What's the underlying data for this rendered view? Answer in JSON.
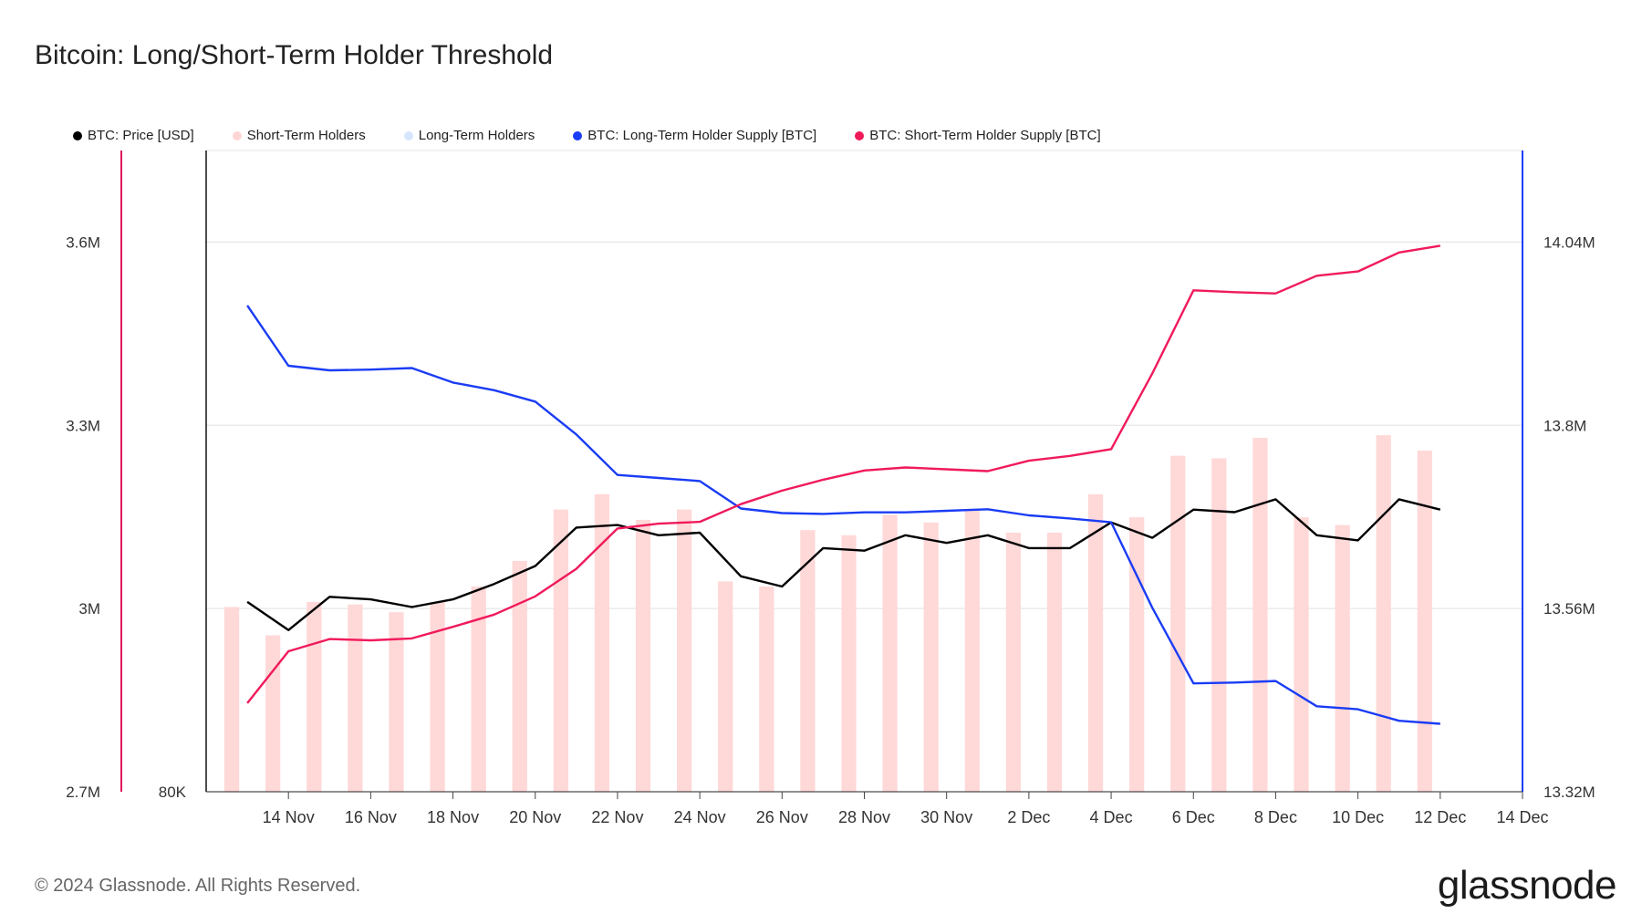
{
  "title": "Bitcoin: Long/Short-Term Holder Threshold",
  "footer": "© 2024 Glassnode. All Rights Reserved.",
  "logo": "glassnode",
  "legend": [
    {
      "label": "BTC: Price [USD]",
      "color": "#000000"
    },
    {
      "label": "Short-Term Holders",
      "color": "#ffd6d6"
    },
    {
      "label": "Long-Term Holders",
      "color": "#d6e6ff"
    },
    {
      "label": "BTC: Long-Term Holder Supply [BTC]",
      "color": "#1a3cf5"
    },
    {
      "label": "BTC: Short-Term Holder Supply [BTC]",
      "color": "#f01a5b"
    }
  ],
  "chart_data": {
    "type": "line",
    "x_tick_labels": [
      "14 Nov",
      "16 Nov",
      "18 Nov",
      "20 Nov",
      "22 Nov",
      "24 Nov",
      "26 Nov",
      "28 Nov",
      "30 Nov",
      "2 Dec",
      "4 Dec",
      "6 Dec",
      "8 Dec",
      "10 Dec",
      "12 Dec",
      "14 Dec"
    ],
    "x_range": [
      "2024-11-12",
      "2024-12-14"
    ],
    "x": [
      "2024-11-13",
      "2024-11-14",
      "2024-11-15",
      "2024-11-16",
      "2024-11-17",
      "2024-11-18",
      "2024-11-19",
      "2024-11-20",
      "2024-11-21",
      "2024-11-22",
      "2024-11-23",
      "2024-11-24",
      "2024-11-25",
      "2024-11-26",
      "2024-11-27",
      "2024-11-28",
      "2024-11-29",
      "2024-11-30",
      "2024-12-01",
      "2024-12-02",
      "2024-12-03",
      "2024-12-04",
      "2024-12-05",
      "2024-12-06",
      "2024-12-07",
      "2024-12-08",
      "2024-12-09",
      "2024-12-10",
      "2024-12-11",
      "2024-12-12"
    ],
    "left_outer_axis": {
      "tick_labels": [
        "3.6M",
        "3.3M",
        "3M",
        "2.7M"
      ],
      "ticks": [
        3600000,
        3300000,
        3000000,
        2700000
      ],
      "range": [
        2700000,
        3750000
      ]
    },
    "left_inner_axis": {
      "tick_labels": [
        "80K"
      ],
      "ticks": [
        80000
      ],
      "range": [
        80000,
        105000
      ]
    },
    "right_axis": {
      "tick_labels": [
        "14.04M",
        "13.8M",
        "13.56M",
        "13.32M"
      ],
      "ticks": [
        14040000,
        13800000,
        13560000,
        13320000
      ],
      "range": [
        13320000,
        14160000
      ]
    },
    "grid": true,
    "series": [
      {
        "name": "Short-Term Holders",
        "type": "bar",
        "axis": "left_inner",
        "values": [
          87200,
          86100,
          87400,
          87300,
          87000,
          87400,
          88000,
          89000,
          91000,
          91600,
          90600,
          91000,
          88200,
          88000,
          90200,
          90000,
          90800,
          90500,
          91000,
          90100,
          90100,
          91600,
          90700,
          93100,
          93000,
          93800,
          90700,
          90400,
          93900,
          93300
        ]
      },
      {
        "name": "BTC: Price [USD]",
        "type": "line",
        "axis": "left_inner",
        "values": [
          87400,
          86300,
          87600,
          87500,
          87200,
          87500,
          88100,
          88800,
          90300,
          90400,
          90000,
          90100,
          88400,
          88000,
          89500,
          89400,
          90000,
          89700,
          90000,
          89500,
          89500,
          90500,
          89900,
          91000,
          90900,
          91400,
          90000,
          89800,
          91400,
          91000
        ]
      },
      {
        "name": "BTC: Long-Term Holder Supply [BTC]",
        "type": "line",
        "axis": "right",
        "values": [
          13957000,
          13878000,
          13872000,
          13873000,
          13875000,
          13856000,
          13846000,
          13831000,
          13788000,
          13735000,
          13731000,
          13727000,
          13691000,
          13685000,
          13684000,
          13686000,
          13686000,
          13688000,
          13690000,
          13682000,
          13678000,
          13673000,
          13561000,
          13462000,
          13463000,
          13465000,
          13432000,
          13428000,
          13413000,
          13409000
        ]
      },
      {
        "name": "BTC: Short-Term Holder Supply [BTC]",
        "type": "line",
        "axis": "left_outer",
        "values": [
          2845000,
          2930000,
          2950000,
          2948000,
          2951000,
          2970000,
          2990000,
          3020000,
          3065000,
          3131000,
          3139000,
          3142000,
          3171000,
          3193000,
          3211000,
          3226000,
          3231000,
          3228000,
          3225000,
          3242000,
          3250000,
          3261000,
          3385000,
          3521000,
          3518000,
          3516000,
          3545000,
          3552000,
          3583000,
          3594000
        ]
      }
    ]
  }
}
